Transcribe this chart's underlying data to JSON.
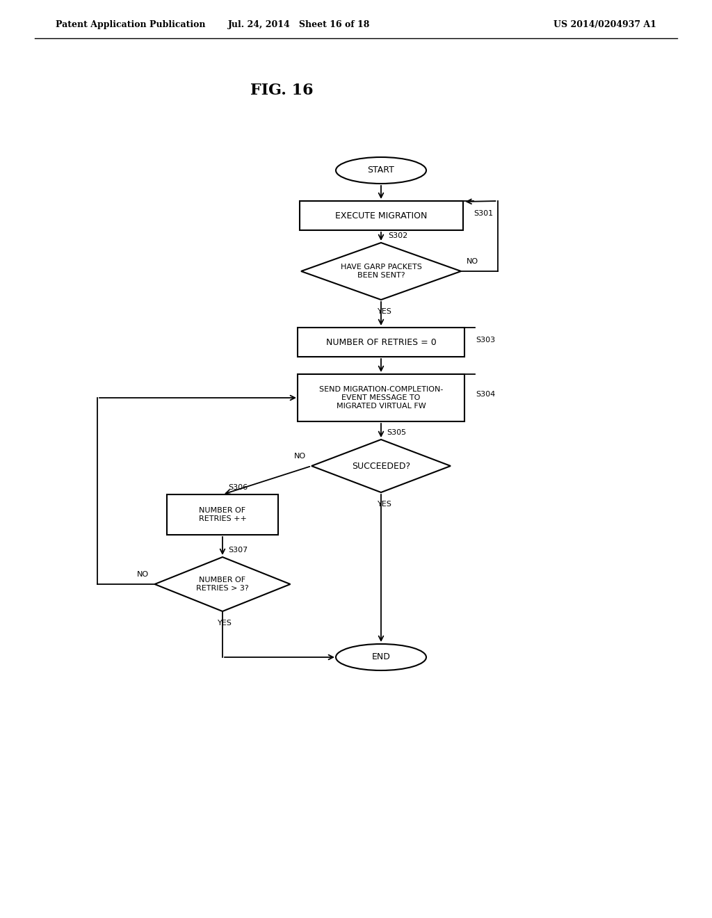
{
  "bg_color": "#ffffff",
  "header_left": "Patent Application Publication",
  "header_mid": "Jul. 24, 2014   Sheet 16 of 18",
  "header_right": "US 2014/0204937 A1",
  "fig_label": "FIG. 16",
  "font_size_node": 9,
  "font_size_header": 9,
  "font_size_fig": 14,
  "font_size_tag": 8,
  "font_size_small": 8
}
